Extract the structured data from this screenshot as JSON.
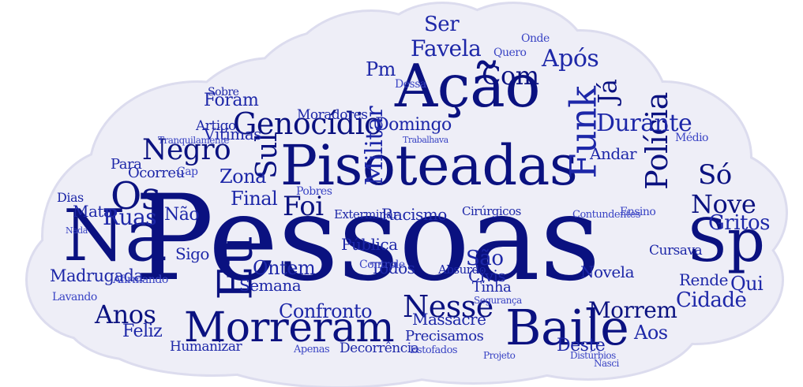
{
  "colors": {
    "background": "#ffffff",
    "cloud_fill": "#eeeef7",
    "cloud_stroke": "#dcdcee",
    "dark_blue": "#0a1180",
    "mid_blue": "#1d27a8",
    "light_blue": "#3a44c4"
  },
  "words": {
    "pessoas": "Pessoas",
    "pisoteadas": "Pisoteadas",
    "acao": "Ação",
    "na": "Na",
    "sp": "Sp",
    "baile": "Baile",
    "morreram": "Morreram",
    "eu": "Eu",
    "funk": "Funk",
    "os": "Os",
    "genocidio": "Genocídio",
    "negro": "Negro",
    "sul": "Sul",
    "policia": "Polícia",
    "nesse": "Nesse",
    "foi": "Foi",
    "so": "Só",
    "durante": "Durante",
    "anos": "Anos",
    "com": "Com",
    "apos": "Após",
    "nove": "Nove",
    "gritos": "Gritos",
    "militar": "Militar",
    "ruas": "Ruas",
    "zona": "Zona",
    "final": "Final",
    "favela": "Favela",
    "ser": "Ser",
    "pm": "Pm",
    "ja": "Já",
    "domingo": "Domingo",
    "foram": "Foram",
    "nao": "Não",
    "morrem": "Morrem",
    "cidade": "Cidade",
    "ontem": "Ontem",
    "sao": "São",
    "confronto": "Confronto",
    "deste": "Deste",
    "aos": "Aos",
    "madrugada": "Madrugada",
    "sigo": "Sigo",
    "qui": "Qui",
    "rende": "Rende",
    "novela": "Novela",
    "publica": "Pública",
    "civis": "Civis",
    "todos": "Todos",
    "racismo": "Racismo",
    "massacre": "Massacre",
    "tinha": "Tinha",
    "feliz": "Feliz",
    "precisamos": "Precisamos",
    "humanizar": "Humanizar",
    "exterminar": "Exterminar",
    "vitimas": "Vítimas",
    "moradores": "Moradores",
    "artigo": "Artigo",
    "sobre": "Sobre",
    "andar": "Andar",
    "dias": "Dias",
    "mata": "Mata",
    "para": "Para",
    "ocorreu": "Ocorreu",
    "tranquilamente": "Tranquilamente",
    "cap": "Cap",
    "semana": "Semana",
    "decorrencia": "Decorrência",
    "estofados": "Estofados",
    "apenas": "Apenas",
    "controle": "Controle",
    "cirurgicos": "Cirúrgicos",
    "contundentes": "Contundentes",
    "seguranca": "Segurança",
    "projeto": "Projeto",
    "disturbios": "Distúrbios",
    "nasci": "Nasci",
    "absurdo": "Absurdo",
    "cursava": "Cursava",
    "ensino": "Ensino",
    "medio": "Médio",
    "afirmando": "Afirmando",
    "lavando": "Lavando",
    "nada": "Nada",
    "dessa": "Dessa",
    "pobres": "Pobres",
    "quero": "Quero",
    "onde": "Onde",
    "trabalhava": "Trabalhava"
  }
}
